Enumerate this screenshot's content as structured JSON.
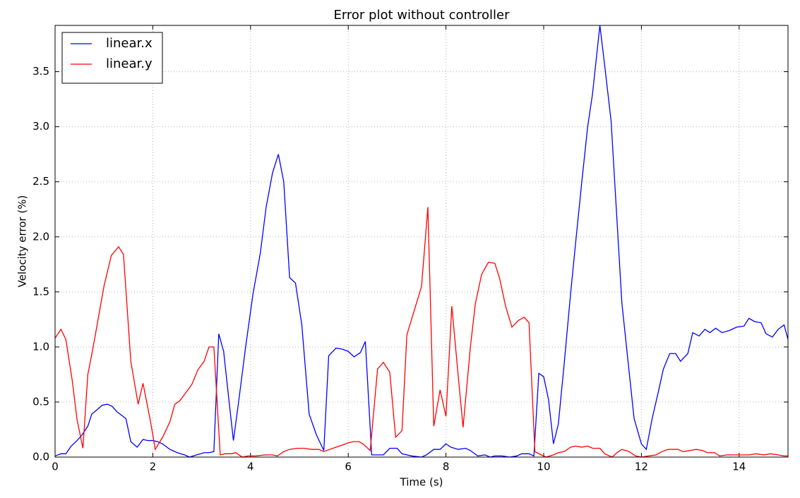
{
  "chart_data": {
    "type": "line",
    "title": "Error plot without controller",
    "xlabel": "Time (s)",
    "ylabel": "Velocity error (%)",
    "xlim": [
      0,
      15
    ],
    "ylim": [
      0,
      3.92
    ],
    "xticks": [
      0,
      2,
      4,
      6,
      8,
      10,
      12,
      14
    ],
    "yticks": [
      {
        "value": 0,
        "label": "0.0"
      },
      0.5,
      {
        "value": 1,
        "label": "1.0"
      },
      1.5,
      {
        "value": 2,
        "label": "2.0"
      },
      2.5,
      {
        "value": 3,
        "label": "3.0"
      },
      3.5
    ],
    "grid": true,
    "legend": "upper left",
    "series": [
      {
        "name": "linear.x",
        "color": "#0000ff",
        "x": [
          0,
          0.12,
          0.22,
          0.33,
          0.45,
          0.55,
          0.67,
          0.75,
          0.86,
          0.96,
          1.07,
          1.17,
          1.27,
          1.45,
          1.55,
          1.68,
          1.8,
          1.9,
          2.0,
          2.1,
          2.2,
          2.35,
          2.5,
          2.65,
          2.75,
          2.9,
          3.05,
          3.15,
          3.25,
          3.35,
          3.45,
          3.55,
          3.65,
          3.75,
          3.9,
          4.05,
          4.2,
          4.32,
          4.45,
          4.57,
          4.68,
          4.8,
          4.92,
          5.05,
          5.2,
          5.35,
          5.5,
          5.6,
          5.75,
          5.88,
          6.0,
          6.12,
          6.25,
          6.35,
          6.48,
          6.6,
          6.72,
          6.85,
          7.0,
          7.1,
          7.3,
          7.5,
          7.6,
          7.75,
          7.88,
          8.0,
          8.1,
          8.25,
          8.4,
          8.5,
          8.65,
          8.8,
          8.9,
          9.0,
          9.15,
          9.3,
          9.45,
          9.55,
          9.7,
          9.8,
          9.9,
          10.0,
          10.1,
          10.2,
          10.3,
          10.42,
          10.55,
          10.65,
          10.78,
          10.9,
          11.0,
          11.15,
          11.25,
          11.38,
          11.5,
          11.6,
          11.75,
          11.85,
          12.0,
          12.1,
          12.22,
          12.35,
          12.45,
          12.58,
          12.7,
          12.8,
          12.95,
          13.05,
          13.18,
          13.3,
          13.4,
          13.52,
          13.65,
          13.8,
          13.95,
          14.1,
          14.2,
          14.32,
          14.45,
          14.55,
          14.68,
          14.8,
          14.92,
          15.0
        ],
        "values": [
          0.01,
          0.03,
          0.03,
          0.1,
          0.15,
          0.2,
          0.28,
          0.39,
          0.43,
          0.47,
          0.48,
          0.46,
          0.41,
          0.35,
          0.14,
          0.09,
          0.16,
          0.15,
          0.15,
          0.14,
          0.12,
          0.07,
          0.04,
          0.02,
          0.0,
          0.02,
          0.04,
          0.04,
          0.05,
          1.12,
          0.96,
          0.55,
          0.15,
          0.48,
          1.0,
          1.48,
          1.85,
          2.27,
          2.58,
          2.75,
          2.5,
          1.63,
          1.58,
          1.2,
          0.39,
          0.2,
          0.06,
          0.92,
          0.99,
          0.98,
          0.96,
          0.91,
          0.95,
          1.05,
          0.02,
          0.02,
          0.02,
          0.08,
          0.08,
          0.03,
          0.01,
          0.0,
          0.02,
          0.07,
          0.07,
          0.12,
          0.09,
          0.07,
          0.08,
          0.06,
          0.01,
          0.02,
          0.0,
          0.01,
          0.01,
          0.0,
          0.01,
          0.03,
          0.03,
          0.01,
          0.76,
          0.73,
          0.52,
          0.12,
          0.3,
          0.85,
          1.48,
          1.93,
          2.5,
          3.0,
          3.3,
          3.92,
          3.55,
          3.05,
          2.15,
          1.4,
          0.77,
          0.35,
          0.12,
          0.07,
          0.35,
          0.6,
          0.8,
          0.94,
          0.94,
          0.87,
          0.94,
          1.13,
          1.1,
          1.16,
          1.13,
          1.17,
          1.13,
          1.15,
          1.18,
          1.19,
          1.26,
          1.23,
          1.22,
          1.12,
          1.09,
          1.16,
          1.2,
          1.07
        ]
      },
      {
        "name": "linear.y",
        "color": "#ff0000",
        "x": [
          0,
          0.12,
          0.22,
          0.35,
          0.45,
          0.57,
          0.67,
          0.78,
          0.9,
          1.0,
          1.15,
          1.3,
          1.4,
          1.55,
          1.7,
          1.8,
          1.95,
          2.05,
          2.2,
          2.35,
          2.45,
          2.55,
          2.7,
          2.8,
          2.92,
          3.05,
          3.15,
          3.25,
          3.38,
          3.48,
          3.6,
          3.7,
          3.83,
          3.95,
          4.1,
          4.3,
          4.45,
          4.55,
          4.68,
          4.8,
          4.95,
          5.1,
          5.25,
          5.4,
          5.5,
          5.62,
          5.75,
          5.88,
          6.0,
          6.1,
          6.22,
          6.3,
          6.45,
          6.6,
          6.72,
          6.85,
          6.97,
          7.1,
          7.2,
          7.35,
          7.5,
          7.63,
          7.75,
          7.88,
          8.0,
          8.12,
          8.25,
          8.35,
          8.5,
          8.6,
          8.73,
          8.87,
          9.0,
          9.1,
          9.22,
          9.35,
          9.48,
          9.6,
          9.7,
          9.82,
          9.95,
          10.05,
          10.2,
          10.3,
          10.42,
          10.55,
          10.65,
          10.78,
          10.9,
          11.0,
          11.15,
          11.25,
          11.4,
          11.5,
          11.6,
          11.75,
          11.88,
          12.0,
          12.15,
          12.3,
          12.42,
          12.55,
          12.75,
          12.85,
          13.0,
          13.12,
          13.25,
          13.35,
          13.5,
          13.6,
          13.75,
          13.9,
          14.05,
          14.2,
          14.35,
          14.5,
          14.65,
          14.8,
          14.92,
          15.0
        ],
        "values": [
          1.08,
          1.16,
          1.07,
          0.7,
          0.34,
          0.08,
          0.75,
          1.0,
          1.3,
          1.55,
          1.83,
          1.91,
          1.84,
          0.87,
          0.48,
          0.67,
          0.33,
          0.07,
          0.18,
          0.32,
          0.48,
          0.51,
          0.6,
          0.66,
          0.79,
          0.87,
          1.0,
          1.0,
          0.02,
          0.03,
          0.03,
          0.04,
          0.0,
          0.01,
          0.01,
          0.02,
          0.02,
          0.01,
          0.05,
          0.07,
          0.08,
          0.08,
          0.07,
          0.07,
          0.05,
          0.07,
          0.09,
          0.11,
          0.13,
          0.14,
          0.14,
          0.12,
          0.06,
          0.8,
          0.86,
          0.77,
          0.18,
          0.24,
          1.11,
          1.33,
          1.55,
          2.27,
          0.28,
          0.61,
          0.37,
          1.37,
          0.74,
          0.27,
          1.0,
          1.39,
          1.66,
          1.77,
          1.76,
          1.62,
          1.37,
          1.18,
          1.24,
          1.27,
          1.22,
          0.05,
          0.02,
          0.0,
          0.02,
          0.04,
          0.05,
          0.09,
          0.1,
          0.09,
          0.1,
          0.08,
          0.08,
          0.03,
          0.0,
          0.04,
          0.07,
          0.05,
          0.01,
          0.0,
          0.01,
          0.02,
          0.05,
          0.07,
          0.07,
          0.05,
          0.06,
          0.07,
          0.06,
          0.04,
          0.04,
          0.01,
          0.02,
          0.02,
          0.02,
          0.02,
          0.03,
          0.02,
          0.03,
          0.02,
          0.01,
          0.01
        ]
      }
    ]
  }
}
